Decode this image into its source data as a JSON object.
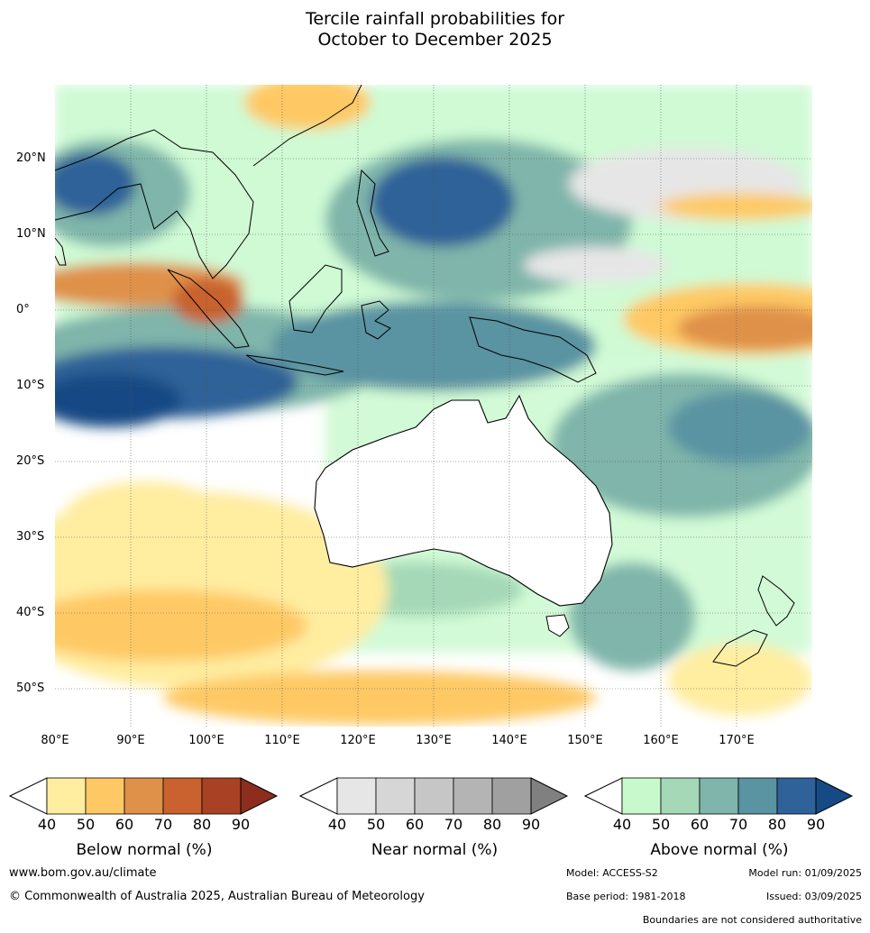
{
  "title_line1": "Tercile rainfall probabilities for",
  "title_line2": "October to December 2025",
  "map": {
    "lat_labels": [
      "20°N",
      "10°N",
      "0°",
      "10°S",
      "20°S",
      "30°S",
      "40°S",
      "50°S"
    ],
    "lon_labels": [
      "80°E",
      "90°E",
      "100°E",
      "110°E",
      "120°E",
      "130°E",
      "140°E",
      "150°E",
      "160°E",
      "170°E"
    ]
  },
  "colorbars": [
    {
      "title": "Below normal (%)",
      "ticks": [
        "40",
        "50",
        "60",
        "70",
        "80",
        "90"
      ],
      "colors": [
        "#ffeda0",
        "#fec965",
        "#df914a",
        "#c9622e",
        "#a94225",
        "#8c2d1e"
      ]
    },
    {
      "title": "Near normal (%)",
      "ticks": [
        "40",
        "50",
        "60",
        "70",
        "80",
        "90"
      ],
      "colors": [
        "#e6e6e6",
        "#d6d6d6",
        "#c6c6c6",
        "#b4b4b4",
        "#a0a0a0",
        "#808080"
      ]
    },
    {
      "title": "Above normal (%)",
      "ticks": [
        "40",
        "50",
        "60",
        "70",
        "80",
        "90"
      ],
      "colors": [
        "#c7f9cc",
        "#a4d8b7",
        "#7fb5aa",
        "#5a93a2",
        "#2f6298",
        "#154a84"
      ]
    }
  ],
  "footer": {
    "url": "www.bom.gov.au/climate",
    "copyright": "© Commonwealth of Australia 2025, Australian Bureau of Meteorology",
    "model": "Model: ACCESS-S2",
    "model_run": "Model run: 01/09/2025",
    "base_period": "Base period: 1981-2018",
    "issued": "Issued: 03/09/2025",
    "disclaimer": "Boundaries are not considered authoritative"
  }
}
